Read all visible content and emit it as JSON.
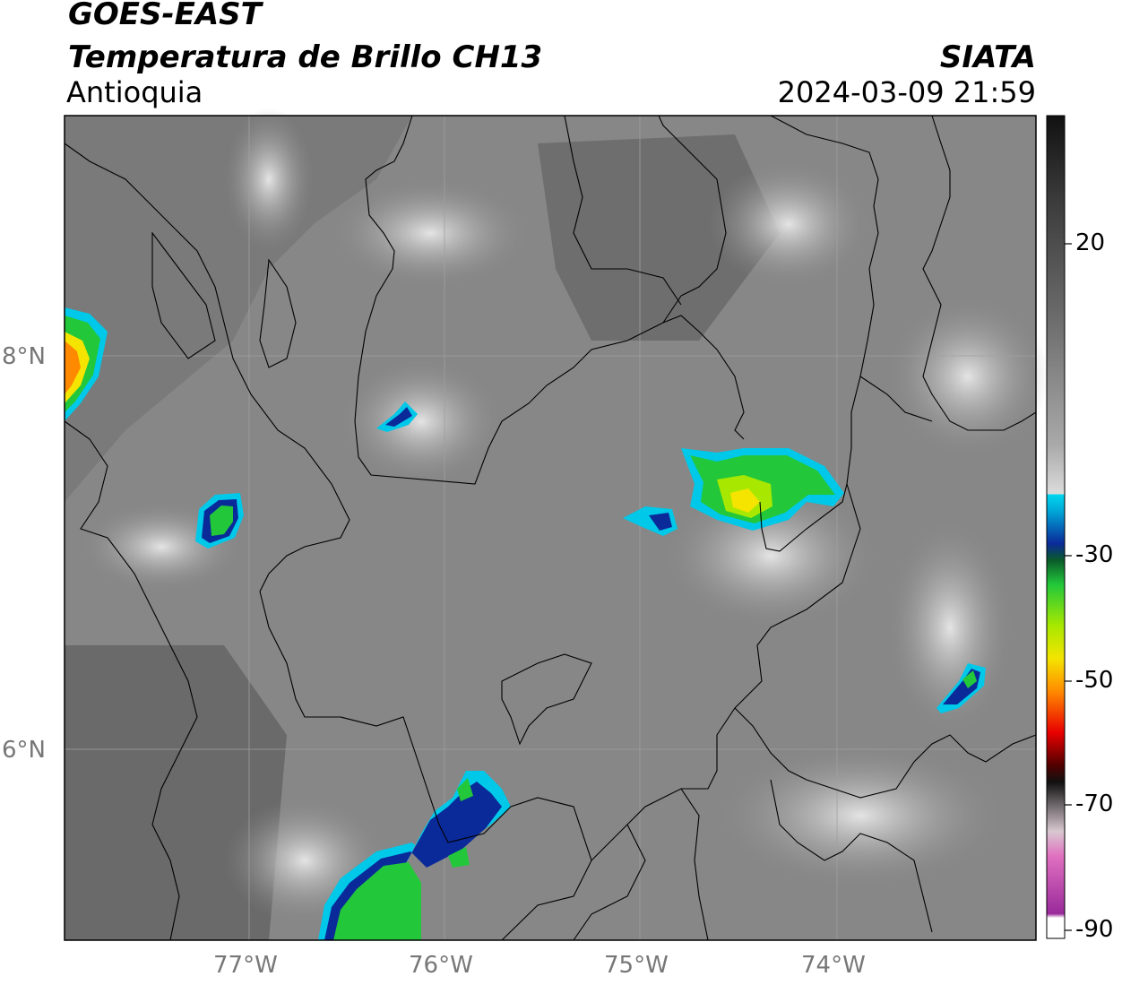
{
  "header": {
    "satellite": "GOES-EAST",
    "product": "Temperatura de Brillo CH13",
    "region": "Antioquia",
    "organization": "SIATA",
    "datetime": "2024-03-09 21:59"
  },
  "map": {
    "lat_labels": [
      "8°N",
      "6°N"
    ],
    "lon_labels": [
      "77°W",
      "76°W",
      "75°W",
      "74°W"
    ],
    "grid": true
  },
  "colorbar": {
    "ticks": [
      "20",
      "-30",
      "-50",
      "-70",
      "-90"
    ],
    "colors": {
      "cold_top_cyan": "#00c8e8",
      "blue": "#0a2a9a",
      "green": "#22c83a",
      "yellow": "#f4e400",
      "orange": "#ff8a00",
      "red": "#e80000",
      "dark": "#1a0000",
      "magenta": "#cc44aa"
    }
  }
}
